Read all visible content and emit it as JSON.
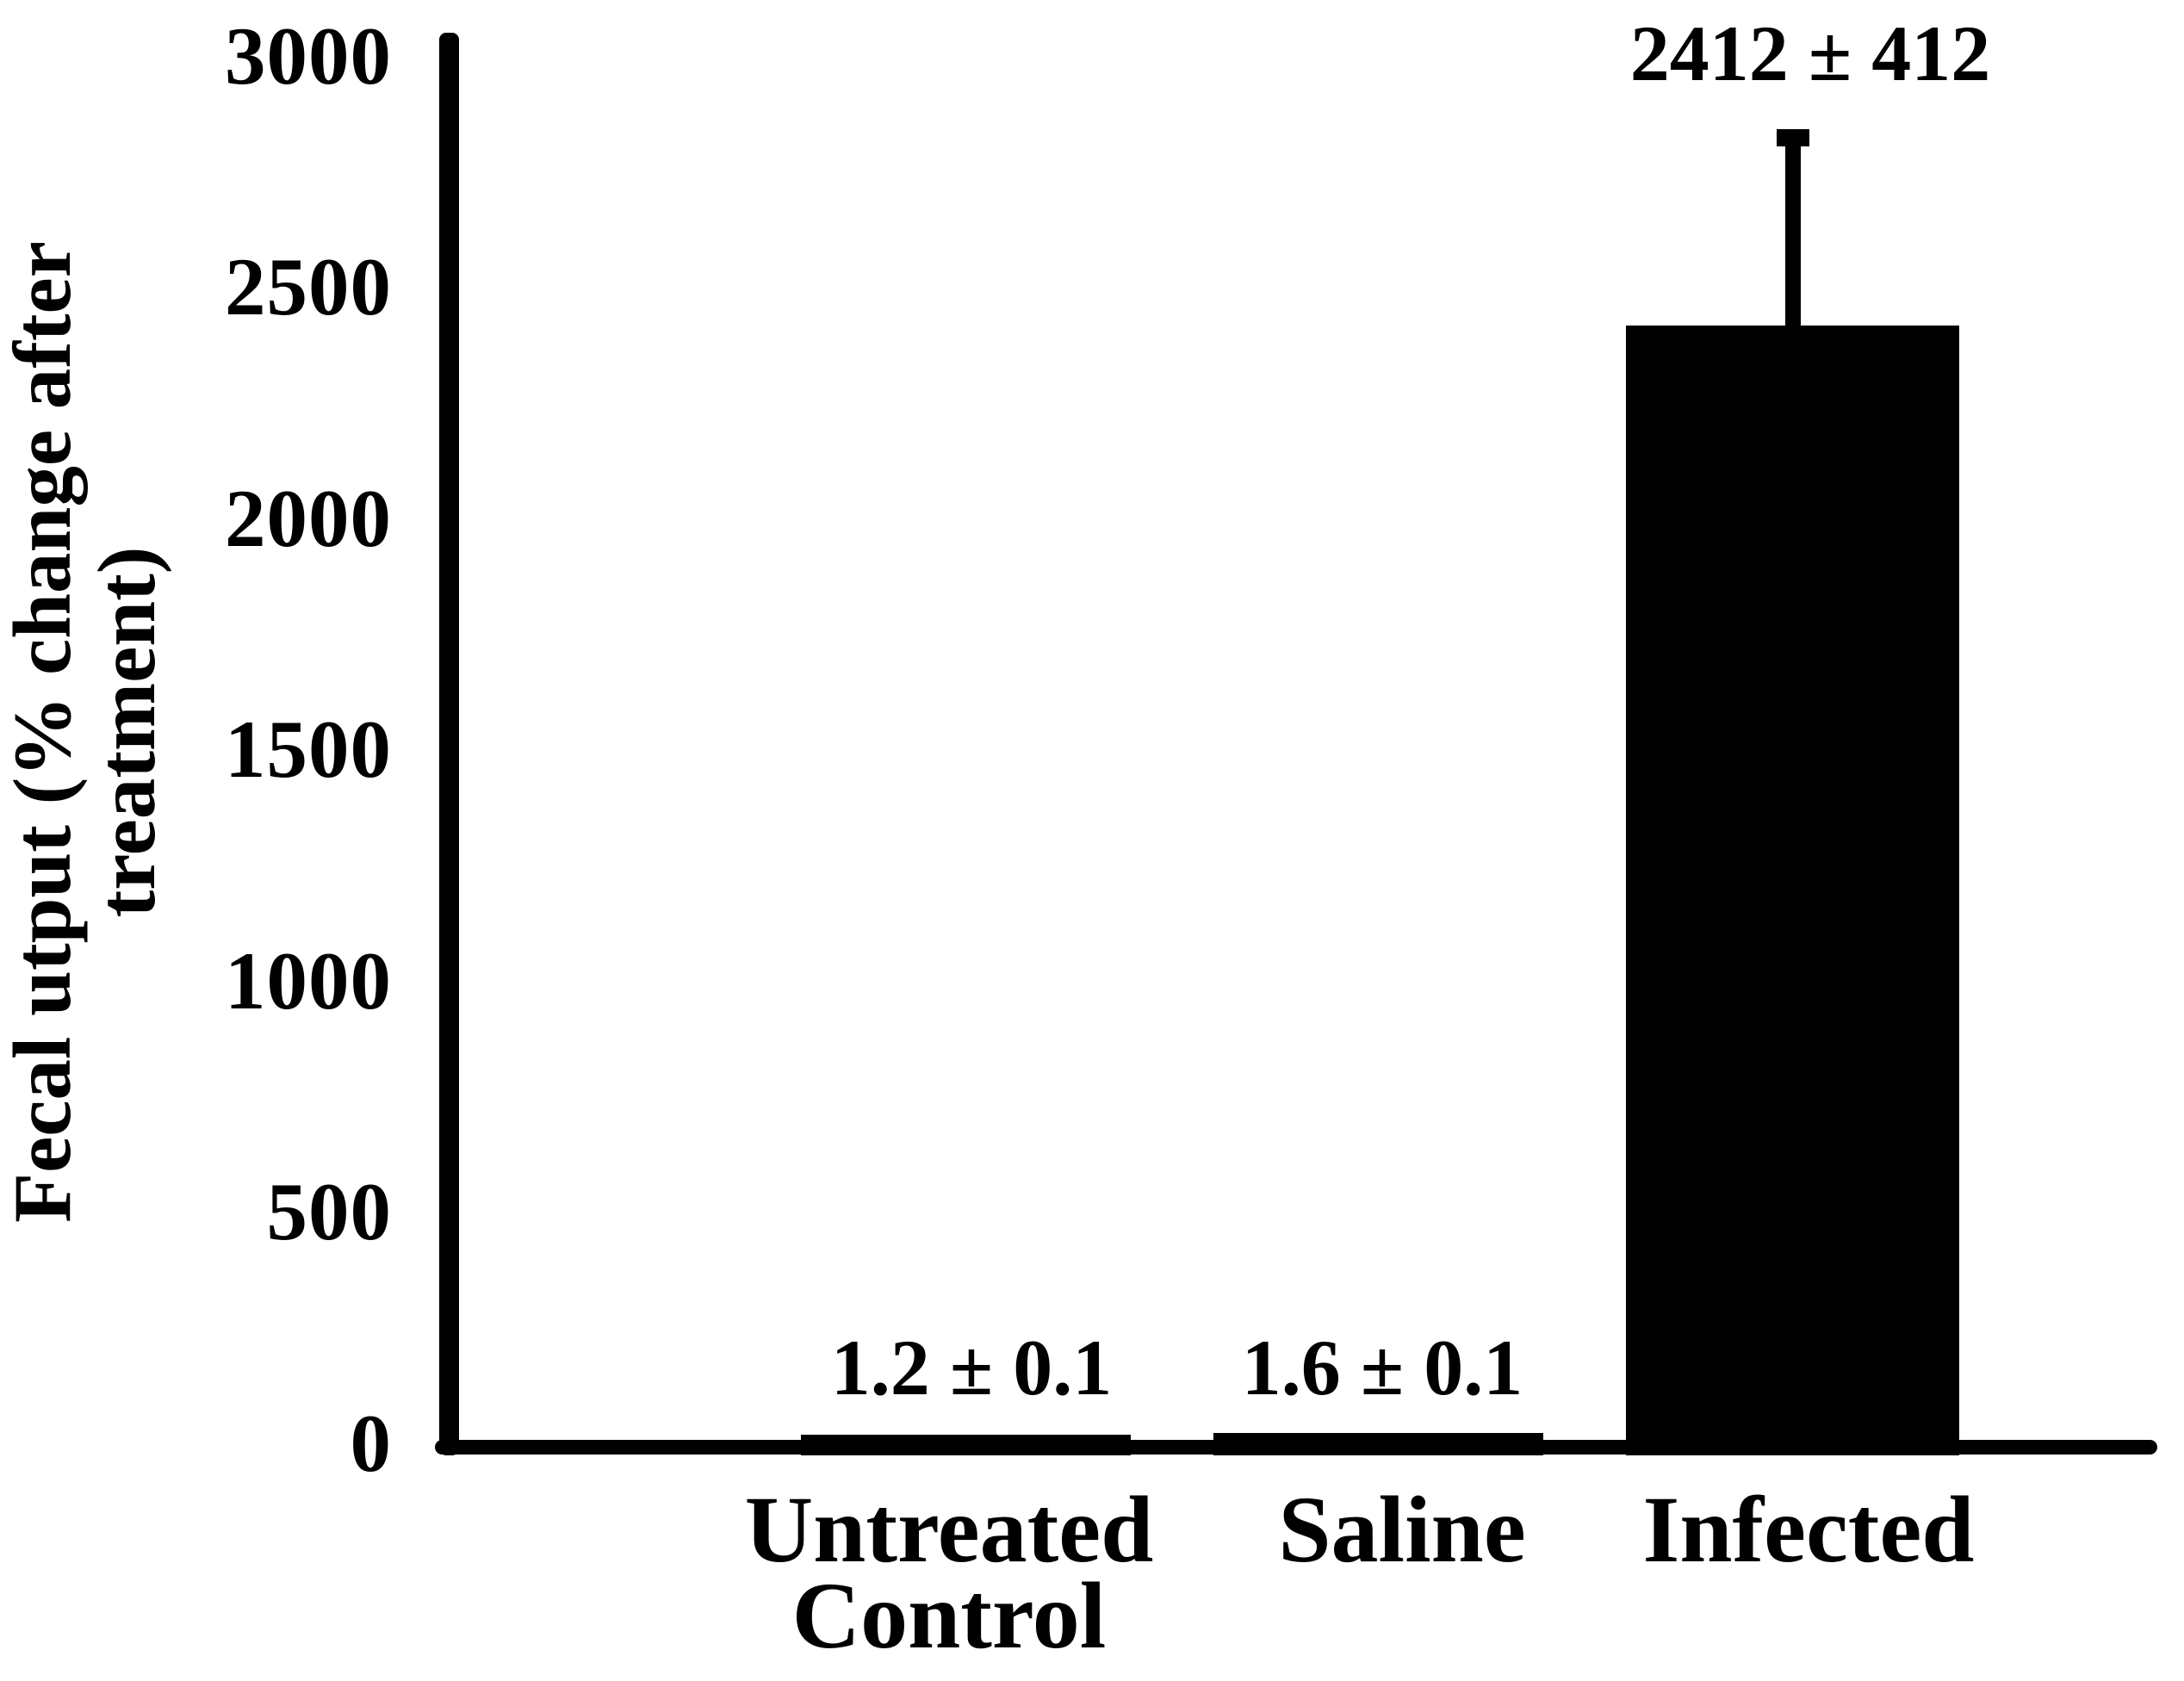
{
  "chart_data": {
    "type": "bar",
    "title": "",
    "ylabel": "Fecal utput (% change after treatment)",
    "ylabel_lines": [
      "Fecal utput (% change after",
      "treatment)"
    ],
    "xlabel": "",
    "categories": [
      "Untreated Control",
      "Saline",
      "Infected"
    ],
    "category_lines": {
      "untreated_line1": "Untreated",
      "untreated_line2": "Control",
      "saline": "Saline",
      "infected": "Infected"
    },
    "values": [
      1.2,
      1.6,
      2412
    ],
    "errors": [
      0.1,
      0.1,
      412
    ],
    "value_labels": [
      "1.2 ± 0.1",
      "1.6 ± 0.1",
      "2412 ± 412"
    ],
    "yticks": [
      0,
      500,
      1000,
      1500,
      2000,
      2500,
      3000
    ],
    "ytick_labels": [
      "0",
      "500",
      "1000",
      "1500",
      "2000",
      "2500",
      "3000"
    ],
    "ylim": [
      0,
      3000
    ],
    "grid": "off",
    "legend": "none",
    "bar_color": "#000000",
    "background_color": "#ffffff"
  }
}
